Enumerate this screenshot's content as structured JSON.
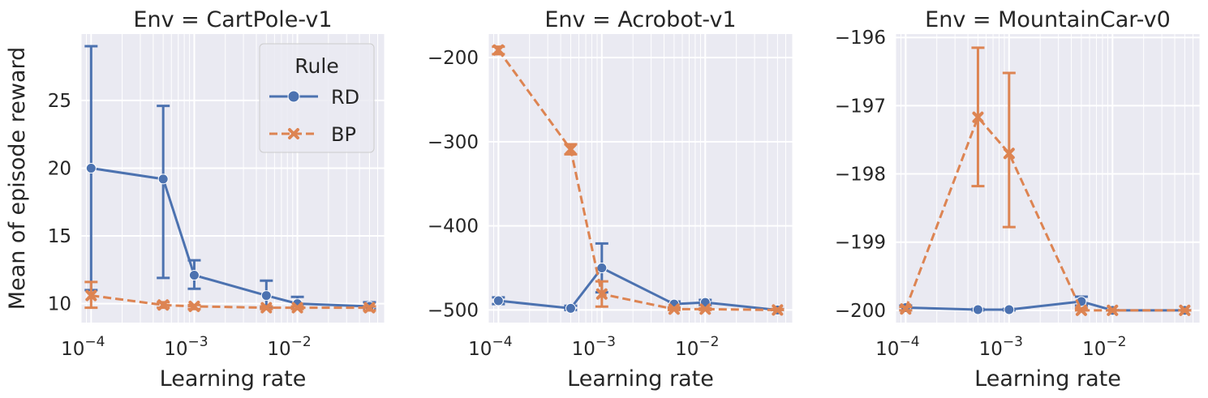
{
  "chart_data": [
    {
      "type": "line",
      "title": "Env = CartPole-v1",
      "xlabel": "Learning rate",
      "ylabel": "Mean of episode reward",
      "xscale": "log",
      "xlim": [
        8e-05,
        0.07
      ],
      "ylim": [
        8.6,
        29.9
      ],
      "yticks": [
        10,
        15,
        20,
        25
      ],
      "xticks": [
        0.0001,
        0.001,
        0.01
      ],
      "xtick_labels": [
        [
          "10",
          "−4"
        ],
        [
          "10",
          "−3"
        ],
        [
          "10",
          "−2"
        ]
      ],
      "grid": true,
      "legend": {
        "title": "Rule",
        "placement": "upper right"
      },
      "series": [
        {
          "name": "RD",
          "color": "#4c72b0",
          "dash": "solid",
          "marker": "circle",
          "points": [
            {
              "x": 0.0001,
              "y": 20.0,
              "lo": 11.0,
              "hi": 29.0
            },
            {
              "x": 0.0005,
              "y": 19.2,
              "lo": 11.9,
              "hi": 24.6
            },
            {
              "x": 0.001,
              "y": 12.1,
              "lo": 11.1,
              "hi": 13.2
            },
            {
              "x": 0.005,
              "y": 10.6,
              "lo": 9.7,
              "hi": 11.7
            },
            {
              "x": 0.01,
              "y": 10.0,
              "lo": 9.7,
              "hi": 10.5
            },
            {
              "x": 0.05,
              "y": 9.8,
              "lo": 9.6,
              "hi": 10.1
            }
          ]
        },
        {
          "name": "BP",
          "color": "#dd8452",
          "dash": "dashed",
          "marker": "x",
          "points": [
            {
              "x": 0.0001,
              "y": 10.6,
              "lo": 9.7,
              "hi": 11.6
            },
            {
              "x": 0.0005,
              "y": 9.9,
              "lo": 9.7,
              "hi": 10.1
            },
            {
              "x": 0.001,
              "y": 9.8,
              "lo": 9.6,
              "hi": 9.9
            },
            {
              "x": 0.005,
              "y": 9.7,
              "lo": 9.6,
              "hi": 9.8
            },
            {
              "x": 0.01,
              "y": 9.7,
              "lo": 9.6,
              "hi": 9.8
            },
            {
              "x": 0.05,
              "y": 9.7,
              "lo": 9.5,
              "hi": 9.8
            }
          ]
        }
      ]
    },
    {
      "type": "line",
      "title": "Env = Acrobot-v1",
      "xlabel": "Learning rate",
      "ylabel": "",
      "xscale": "log",
      "xlim": [
        8e-05,
        0.07
      ],
      "ylim": [
        -515,
        -172
      ],
      "yticks": [
        -500,
        -400,
        -300,
        -200
      ],
      "ytick_labels": [
        "−500",
        "−400",
        "−300",
        "−200"
      ],
      "xticks": [
        0.0001,
        0.001,
        0.01
      ],
      "xtick_labels": [
        [
          "10",
          "−4"
        ],
        [
          "10",
          "−3"
        ],
        [
          "10",
          "−2"
        ]
      ],
      "grid": true,
      "series": [
        {
          "name": "RD",
          "color": "#4c72b0",
          "dash": "solid",
          "marker": "circle",
          "points": [
            {
              "x": 0.0001,
              "y": -489,
              "lo": -493,
              "hi": -485
            },
            {
              "x": 0.0005,
              "y": -498,
              "lo": -500,
              "hi": -495
            },
            {
              "x": 0.001,
              "y": -450,
              "lo": -479,
              "hi": -421
            },
            {
              "x": 0.005,
              "y": -493,
              "lo": -497,
              "hi": -490
            },
            {
              "x": 0.01,
              "y": -491,
              "lo": -494,
              "hi": -488
            },
            {
              "x": 0.05,
              "y": -500,
              "lo": -500,
              "hi": -499
            }
          ]
        },
        {
          "name": "BP",
          "color": "#dd8452",
          "dash": "dashed",
          "marker": "x",
          "points": [
            {
              "x": 0.0001,
              "y": -191,
              "lo": -196,
              "hi": -187
            },
            {
              "x": 0.0005,
              "y": -309,
              "lo": -315,
              "hi": -303
            },
            {
              "x": 0.001,
              "y": -481,
              "lo": -496,
              "hi": -466
            },
            {
              "x": 0.005,
              "y": -499,
              "lo": -500,
              "hi": -497
            },
            {
              "x": 0.01,
              "y": -499,
              "lo": -500,
              "hi": -498
            },
            {
              "x": 0.05,
              "y": -500,
              "lo": -500,
              "hi": -499
            }
          ]
        }
      ]
    },
    {
      "type": "line",
      "title": "Env = MountainCar-v0",
      "xlabel": "Learning rate",
      "ylabel": "",
      "xscale": "log",
      "xlim": [
        8e-05,
        0.07
      ],
      "ylim": [
        -200.18,
        -195.95
      ],
      "yticks": [
        -200,
        -199,
        -198,
        -197,
        -196
      ],
      "ytick_labels": [
        "−200",
        "−199",
        "−198",
        "−197",
        "−196"
      ],
      "xticks": [
        0.0001,
        0.001,
        0.01
      ],
      "xtick_labels": [
        [
          "10",
          "−4"
        ],
        [
          "10",
          "−3"
        ],
        [
          "10",
          "−2"
        ]
      ],
      "grid": true,
      "series": [
        {
          "name": "RD",
          "color": "#4c72b0",
          "dash": "solid",
          "marker": "circle",
          "points": [
            {
              "x": 0.0001,
              "y": -199.96,
              "lo": -200.0,
              "hi": -199.93
            },
            {
              "x": 0.0005,
              "y": -199.99,
              "lo": -200.0,
              "hi": -199.98
            },
            {
              "x": 0.001,
              "y": -199.99,
              "lo": -200.0,
              "hi": -199.98
            },
            {
              "x": 0.005,
              "y": -199.87,
              "lo": -199.93,
              "hi": -199.8
            },
            {
              "x": 0.01,
              "y": -200.0,
              "lo": -200.0,
              "hi": -200.0
            },
            {
              "x": 0.05,
              "y": -200.0,
              "lo": -200.0,
              "hi": -200.0
            }
          ]
        },
        {
          "name": "BP",
          "color": "#dd8452",
          "dash": "dashed",
          "marker": "x",
          "points": [
            {
              "x": 0.0001,
              "y": -199.98,
              "lo": -200.0,
              "hi": -199.95
            },
            {
              "x": 0.0005,
              "y": -197.17,
              "lo": -198.18,
              "hi": -196.15
            },
            {
              "x": 0.001,
              "y": -197.7,
              "lo": -198.78,
              "hi": -196.52
            },
            {
              "x": 0.005,
              "y": -200.0,
              "lo": -200.0,
              "hi": -199.97
            },
            {
              "x": 0.01,
              "y": -200.0,
              "lo": -200.0,
              "hi": -200.0
            },
            {
              "x": 0.05,
              "y": -200.0,
              "lo": -200.0,
              "hi": -200.0
            }
          ]
        }
      ]
    }
  ]
}
